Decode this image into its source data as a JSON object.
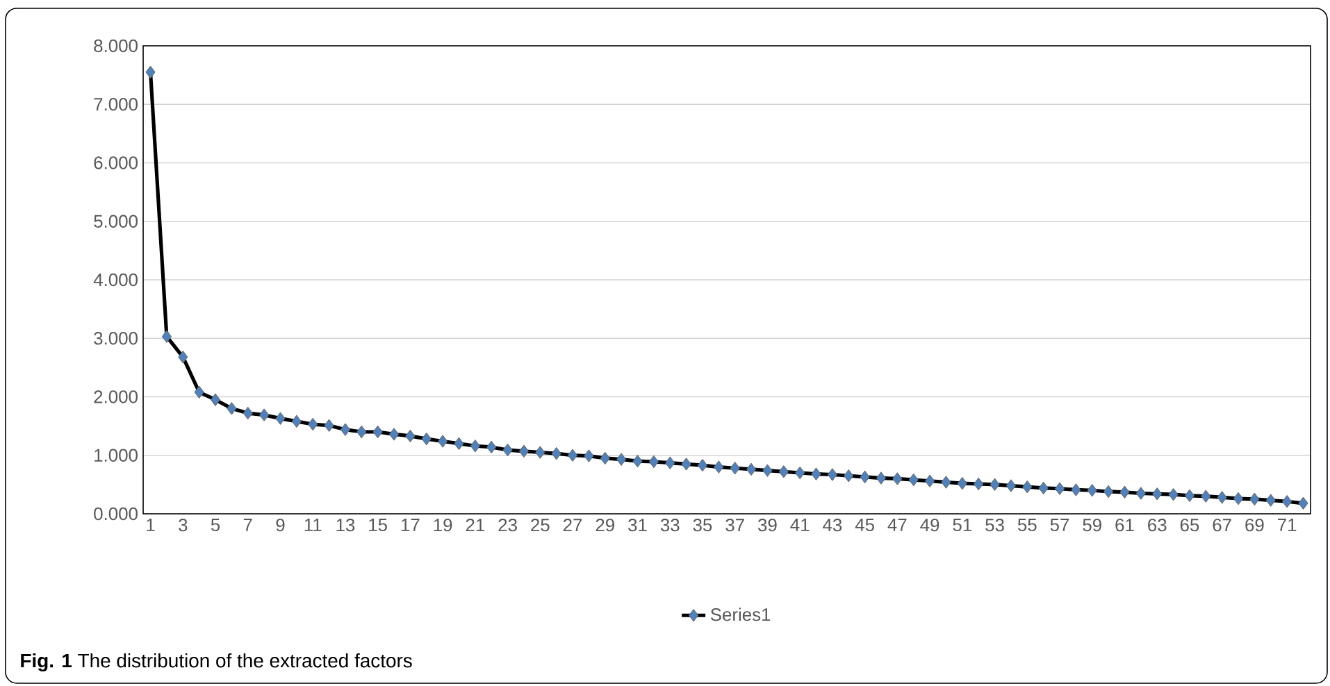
{
  "chart_data": {
    "type": "line",
    "categories": [
      "1",
      null,
      "3",
      null,
      "5",
      null,
      "7",
      null,
      "9",
      null,
      "11",
      null,
      "13",
      null,
      "15",
      null,
      "17",
      null,
      "19",
      null,
      "21",
      null,
      "23",
      null,
      "25",
      null,
      "27",
      null,
      "29",
      null,
      "31",
      null,
      "33",
      null,
      "35",
      null,
      "37",
      null,
      "39",
      null,
      "41",
      null,
      "43",
      null,
      "45",
      null,
      "47",
      null,
      "49",
      null,
      "51",
      null,
      "53",
      null,
      "55",
      null,
      "57",
      null,
      "59",
      null,
      "61",
      null,
      "63",
      null,
      "65",
      null,
      "67",
      null,
      "69",
      null,
      "71",
      null
    ],
    "series": [
      {
        "name": "Series1",
        "color": "#4f81bd",
        "values": [
          7.55,
          3.03,
          2.68,
          2.08,
          1.95,
          1.8,
          1.72,
          1.69,
          1.63,
          1.58,
          1.53,
          1.51,
          1.44,
          1.4,
          1.4,
          1.36,
          1.33,
          1.28,
          1.24,
          1.2,
          1.16,
          1.14,
          1.09,
          1.07,
          1.05,
          1.03,
          1.0,
          0.99,
          0.95,
          0.93,
          0.9,
          0.89,
          0.87,
          0.85,
          0.83,
          0.8,
          0.78,
          0.76,
          0.74,
          0.72,
          0.7,
          0.68,
          0.67,
          0.65,
          0.63,
          0.61,
          0.6,
          0.58,
          0.56,
          0.54,
          0.52,
          0.51,
          0.5,
          0.48,
          0.46,
          0.44,
          0.43,
          0.41,
          0.4,
          0.38,
          0.37,
          0.35,
          0.34,
          0.33,
          0.31,
          0.3,
          0.28,
          0.26,
          0.25,
          0.23,
          0.21,
          0.18
        ]
      }
    ],
    "ylim": [
      0,
      8
    ],
    "yticks": [
      {
        "value": 0,
        "label": "0.000"
      },
      {
        "value": 1,
        "label": "1.000"
      },
      {
        "value": 2,
        "label": "2.000"
      },
      {
        "value": 3,
        "label": "3.000"
      },
      {
        "value": 4,
        "label": "4.000"
      },
      {
        "value": 5,
        "label": "5.000"
      },
      {
        "value": 6,
        "label": "6.000"
      },
      {
        "value": 7,
        "label": "7.000"
      },
      {
        "value": 8,
        "label": "8.000"
      }
    ],
    "grid": "y",
    "legend": "bottom",
    "marker": "diamond",
    "line_style": "solid",
    "annotations": [
      "**Fig. 1** The distribution of the extracted factors"
    ]
  }
}
